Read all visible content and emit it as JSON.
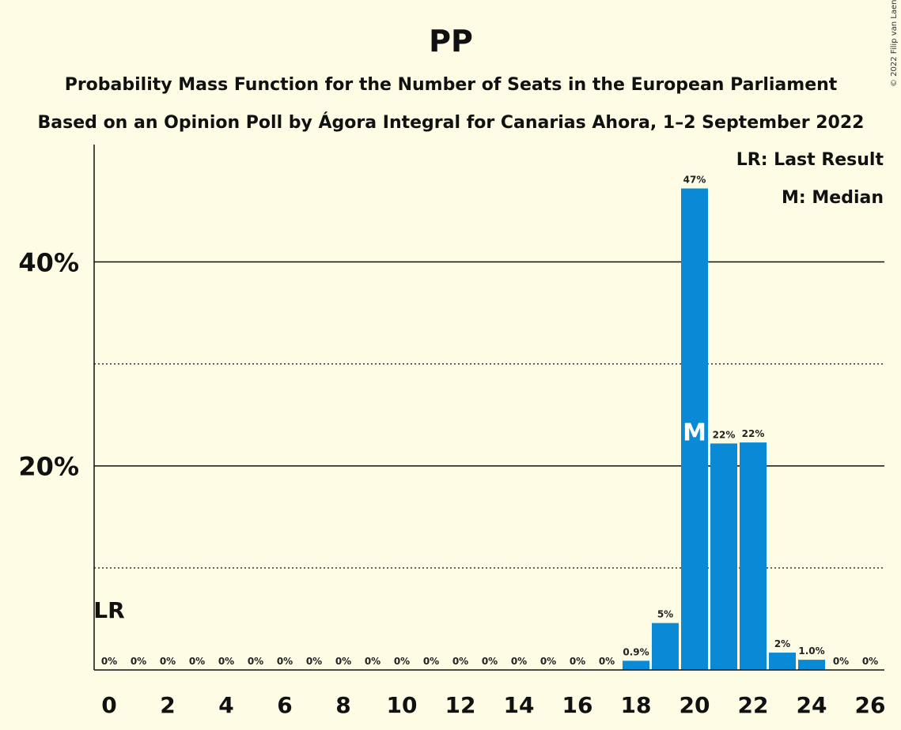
{
  "chart_data": {
    "type": "bar",
    "title": "PP",
    "subtitle1": "Probability Mass Function for the Number of Seats in the European Parliament",
    "subtitle2": "Based on an Opinion Poll by Ágora Integral for Canarias Ahora, 1–2 September 2022",
    "copyright": "© 2022 Filip van Laenen",
    "legend": [
      "LR: Last Result",
      "M: Median"
    ],
    "legend_position": "top-right",
    "x": [
      0,
      1,
      2,
      3,
      4,
      5,
      6,
      7,
      8,
      9,
      10,
      11,
      12,
      13,
      14,
      15,
      16,
      17,
      18,
      19,
      20,
      21,
      22,
      23,
      24,
      25,
      26
    ],
    "values": [
      0,
      0,
      0,
      0,
      0,
      0,
      0,
      0,
      0,
      0,
      0,
      0,
      0,
      0,
      0,
      0,
      0,
      0,
      0.9,
      4.6,
      47.2,
      22.2,
      22.3,
      1.7,
      1.0,
      0,
      0
    ],
    "labels": [
      "0%",
      "0%",
      "0%",
      "0%",
      "0%",
      "0%",
      "0%",
      "0%",
      "0%",
      "0%",
      "0%",
      "0%",
      "0%",
      "0%",
      "0%",
      "0%",
      "0%",
      "0%",
      "0.9%",
      "5%",
      "47%",
      "22%",
      "22%",
      "2%",
      "1.0%",
      "0%",
      "0%"
    ],
    "x_tick_labels": [
      "0",
      "2",
      "4",
      "6",
      "8",
      "10",
      "12",
      "14",
      "16",
      "18",
      "20",
      "22",
      "24",
      "26"
    ],
    "y_tick_labels": [
      "20%",
      "40%"
    ],
    "ylim": [
      0,
      51.5
    ],
    "gridlines_solid": [
      20,
      40
    ],
    "gridlines_dotted": [
      10,
      30
    ],
    "last_result": {
      "seat": 0,
      "label": "LR"
    },
    "median": {
      "seat": 20,
      "label": "M"
    },
    "bar_color": "#0a8ad6",
    "background": "#fefce5"
  }
}
